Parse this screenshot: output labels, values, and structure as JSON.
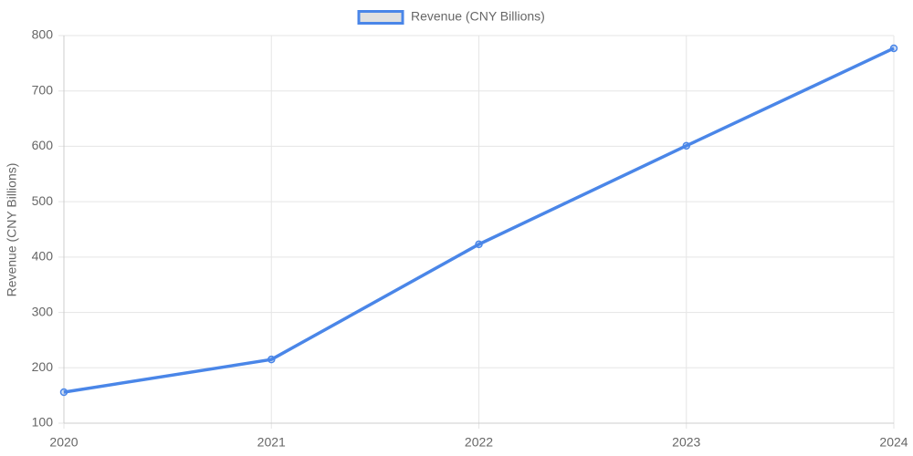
{
  "chart_data": {
    "type": "line",
    "y_label": "Revenue (CNY Billions)",
    "categories": [
      "2020",
      "2021",
      "2022",
      "2023",
      "2024"
    ],
    "series": [
      {
        "name": "Revenue (CNY Billions)",
        "color": "#4a86e8",
        "values": [
          156,
          215,
          423,
          601,
          777
        ]
      }
    ],
    "ylim": [
      100,
      800
    ],
    "yticks": [
      100,
      200,
      300,
      400,
      500,
      600,
      700,
      800
    ],
    "grid": true,
    "legend": "top"
  }
}
